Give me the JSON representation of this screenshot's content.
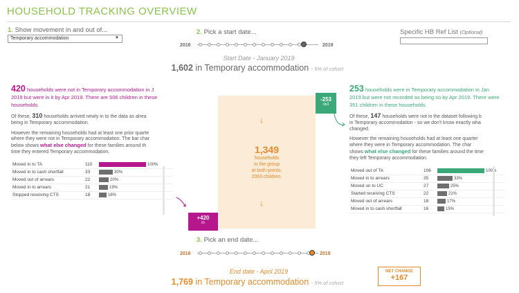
{
  "title": "HOUSEHOLD TRACKING OVERVIEW",
  "step1": {
    "num": "1.",
    "label": "Show movement in and out of...",
    "selected": "Temporary accommodation"
  },
  "step2": {
    "num": "2.",
    "label": "Pick a start date...",
    "year_start": "2016",
    "year_end": "2019"
  },
  "step3": {
    "num": "3.",
    "label": "Pick an end date...",
    "year_start": "2016",
    "year_end": "2019"
  },
  "hb_ref": {
    "label": "Specific HB Ref List",
    "optional": "(Optional)"
  },
  "start": {
    "heading": "Start Date - January 2019",
    "count": "1,602",
    "text": "in Temporary accommodation",
    "note": "- 5% of cohort"
  },
  "end": {
    "heading": "End date - April 2019",
    "count": "1,769",
    "text": "in Temporary accommodation",
    "note": "- 5% of cohort"
  },
  "net_change": {
    "label": "NET CHANGE",
    "value": "+167"
  },
  "center": {
    "count": "1,349",
    "l1": "households",
    "l2": "in the group",
    "l3": "at both points.",
    "l4": "2063 children."
  },
  "out_box": {
    "value": "-253",
    "label": "out"
  },
  "in_box": {
    "value": "+420",
    "label": "in"
  },
  "colors": {
    "accent_green": "#8bc34a",
    "in_magenta": "#b7178c",
    "out_green": "#3aa878",
    "orange": "#e48a2b"
  },
  "left": {
    "count": "420",
    "lead1": "households were not in Temporary accommodation in J",
    "lead2": "2019 but were in it by Apr 2019. There are 506 children in these",
    "lead3": "households.",
    "p1a": "Of these,",
    "p1num": "310",
    "p1b": "households arrived newly in to the data as alrea",
    "p1c": "being in Temporary accommodation.",
    "p2a": "However the remaining households had at least one prior quarte",
    "p2b": "where they were not in Temporary accommodation. The bar char",
    "p2c": "below shows",
    "p2hl": "what else changed",
    "p2d": "for these families around th",
    "p2e": "time they entered Temporary accommodation.",
    "rows": [
      {
        "label": "Moved in to TA",
        "value": "110",
        "pct": "100%",
        "frac": 1.0
      },
      {
        "label": "Moved in to cash shortfall",
        "value": "33",
        "pct": "30%",
        "frac": 0.3
      },
      {
        "label": "Moved out of arrears",
        "value": "22",
        "pct": "20%",
        "frac": 0.2
      },
      {
        "label": "Moved in to arrears",
        "value": "21",
        "pct": "19%",
        "frac": 0.19
      },
      {
        "label": "Stopped receiving CTS",
        "value": "18",
        "pct": "16%",
        "frac": 0.16
      }
    ]
  },
  "right": {
    "count": "253",
    "lead1": "households were in Temporary accommodation in Jan",
    "lead2": "2019 but were not recorded as being so by Apr 2019. There were",
    "lead3": "351 children in these households.",
    "p1a": "Of these,",
    "p1num": "147",
    "p1b": "households were not in the dataset following b",
    "p1c": "in Temporary accommodation - so we don't know exactly wha",
    "p1d": "changed.",
    "p2a": "However the remaining households had at least one quarter",
    "p2b": "where they were in Temporary accommodation. The char",
    "p2c": "shows",
    "p2hl": "what else changed",
    "p2d": "for these families around the time",
    "p2e": "they left Temporary accommodation.",
    "rows": [
      {
        "label": "Moved out of TA",
        "value": "106",
        "pct": "100%",
        "frac": 1.0
      },
      {
        "label": "Moved in to arrears",
        "value": "35",
        "pct": "33%",
        "frac": 0.33
      },
      {
        "label": "Moved on to UC",
        "value": "27",
        "pct": "25%",
        "frac": 0.25
      },
      {
        "label": "Started receiving CTS",
        "value": "22",
        "pct": "21%",
        "frac": 0.21
      },
      {
        "label": "Moved out of arrears",
        "value": "18",
        "pct": "17%",
        "frac": 0.17
      },
      {
        "label": "Moved in to cash shortfall",
        "value": "16",
        "pct": "15%",
        "frac": 0.15
      }
    ]
  }
}
